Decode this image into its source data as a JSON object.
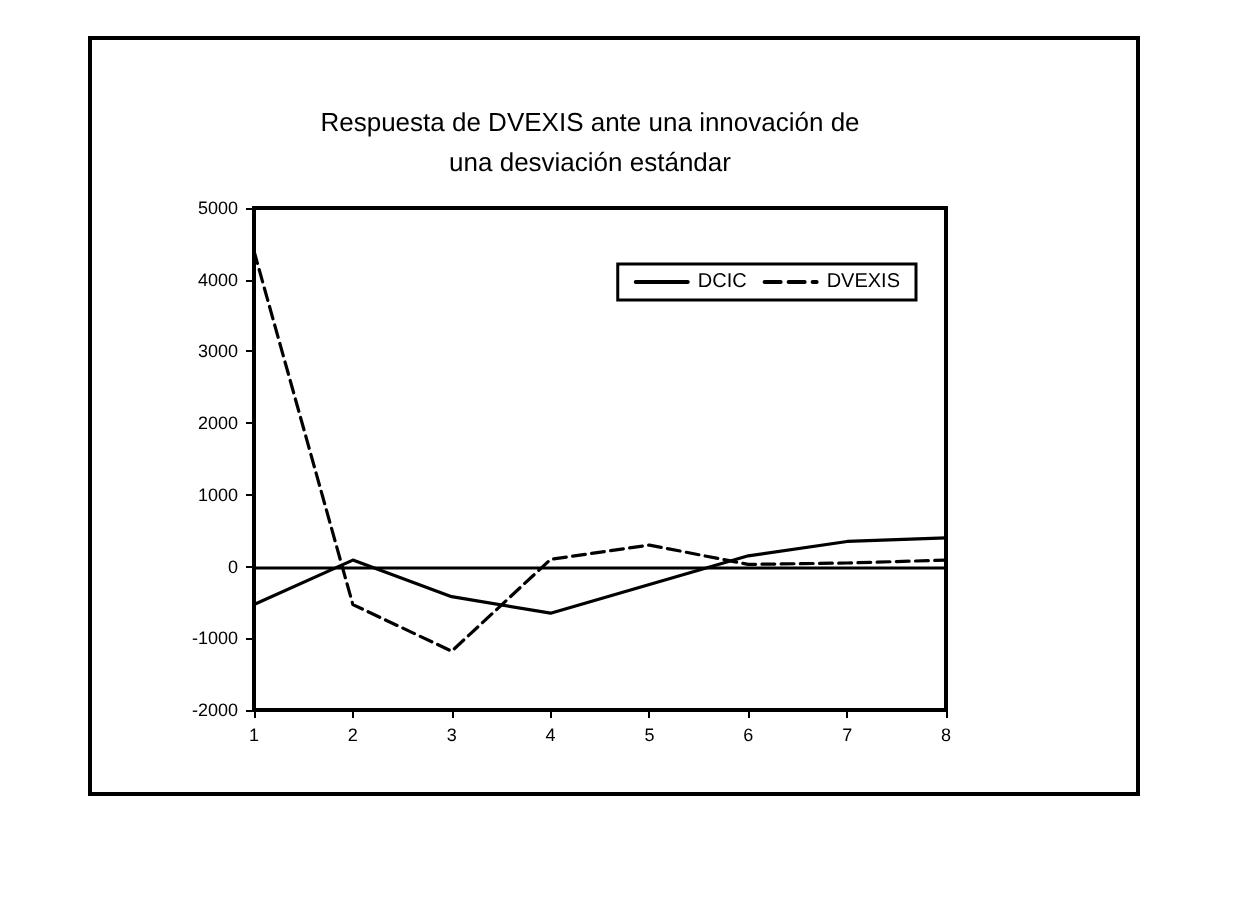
{
  "chart_data": {
    "type": "line",
    "title": "Respuesta de DVEXIS ante una innovación de\nuna desviación estándar",
    "x": [
      1,
      2,
      3,
      4,
      5,
      6,
      7,
      8
    ],
    "series": [
      {
        "name": "DCIC",
        "color": "#000000",
        "line_style": "solid",
        "values": [
          -530,
          90,
          -420,
          -650,
          -250,
          150,
          350,
          400
        ]
      },
      {
        "name": "DVEXIS",
        "color": "#000000",
        "line_style": "dashed",
        "values": [
          4400,
          -530,
          -1180,
          100,
          300,
          30,
          50,
          90
        ]
      }
    ],
    "xlim": [
      1,
      8
    ],
    "xticks": [
      1,
      2,
      3,
      4,
      5,
      6,
      7,
      8
    ],
    "ylim": [
      -2000,
      5000
    ],
    "yticks": [
      -2000,
      -1000,
      0,
      1000,
      2000,
      3000,
      4000,
      5000
    ],
    "ref_lines": [
      {
        "axis": "y",
        "value": 0,
        "color": "#000000",
        "line_style": "solid"
      }
    ],
    "grid": false,
    "legend": "top right",
    "marker": "none"
  }
}
